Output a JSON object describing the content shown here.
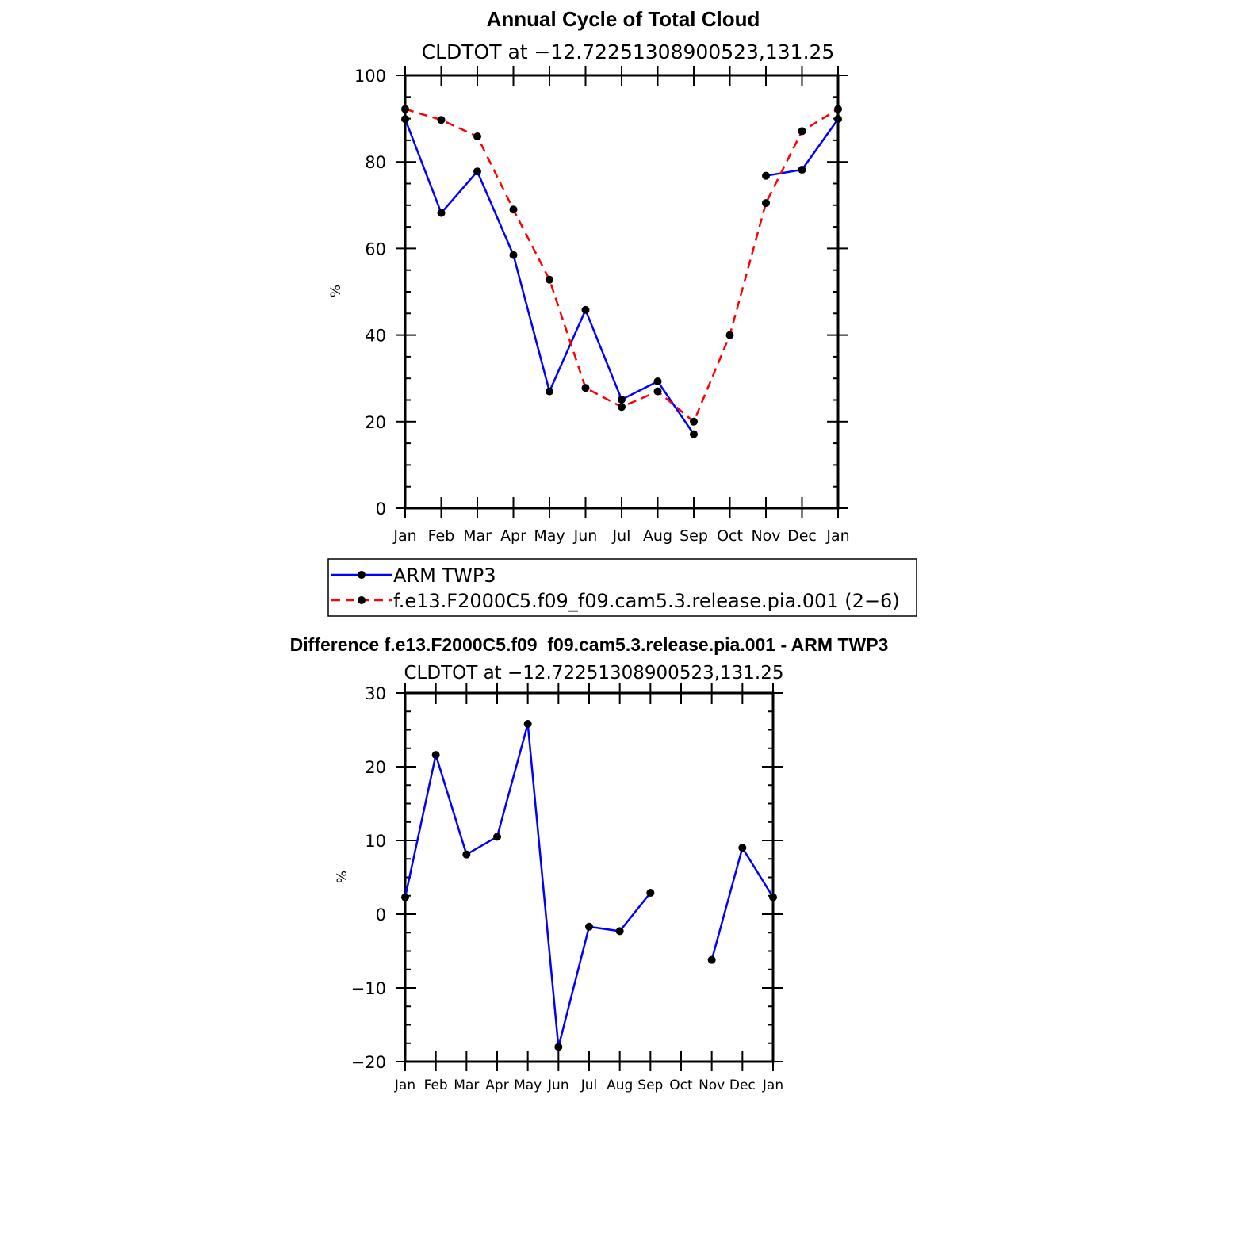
{
  "chart_data": [
    {
      "type": "line",
      "title": "Annual Cycle of Total Cloud",
      "subtitle": "CLDTOT at −12.72251308900523,131.25",
      "xlabel": "",
      "ylabel": "%",
      "categories": [
        "Jan",
        "Feb",
        "Mar",
        "Apr",
        "May",
        "Jun",
        "Jul",
        "Aug",
        "Sep",
        "Oct",
        "Nov",
        "Dec",
        "Jan"
      ],
      "ylim": [
        0,
        100
      ],
      "yticks": [
        "0",
        "20",
        "40",
        "60",
        "80",
        "100"
      ],
      "series": [
        {
          "name": "ARM TWP3",
          "color": "#0000ff",
          "dash": "solid",
          "values": [
            89.9,
            68.2,
            77.8,
            58.5,
            27.0,
            45.8,
            25.1,
            29.3,
            17.1,
            null,
            76.8,
            78.2,
            89.9
          ]
        },
        {
          "name": "f.e13.F2000C5.f09_f09.cam5.3.release.pia.001 (2−6)",
          "color": "#ff0000",
          "dash": "dashed",
          "values": [
            92.2,
            89.7,
            85.9,
            69.0,
            52.8,
            27.8,
            23.4,
            27.0,
            20.0,
            40.0,
            70.5,
            87.1,
            92.2
          ]
        }
      ],
      "legend": "bottom"
    },
    {
      "type": "line",
      "title": "Difference f.e13.F2000C5.f09_f09.cam5.3.release.pia.001 - ARM TWP3",
      "subtitle": "CLDTOT at −12.72251308900523,131.25",
      "xlabel": "",
      "ylabel": "%",
      "categories": [
        "Jan",
        "Feb",
        "Mar",
        "Apr",
        "May",
        "Jun",
        "Jul",
        "Aug",
        "Sep",
        "Oct",
        "Nov",
        "Dec",
        "Jan"
      ],
      "ylim": [
        -20,
        30
      ],
      "yticks": [
        "−20",
        "−10",
        "0",
        "10",
        "20",
        "30"
      ],
      "series": [
        {
          "name": "Difference",
          "color": "#0000ff",
          "dash": "solid",
          "values": [
            2.3,
            21.6,
            8.1,
            10.5,
            25.8,
            -18.0,
            -1.7,
            -2.3,
            2.9,
            null,
            -6.2,
            9.0,
            2.3
          ]
        }
      ]
    }
  ]
}
